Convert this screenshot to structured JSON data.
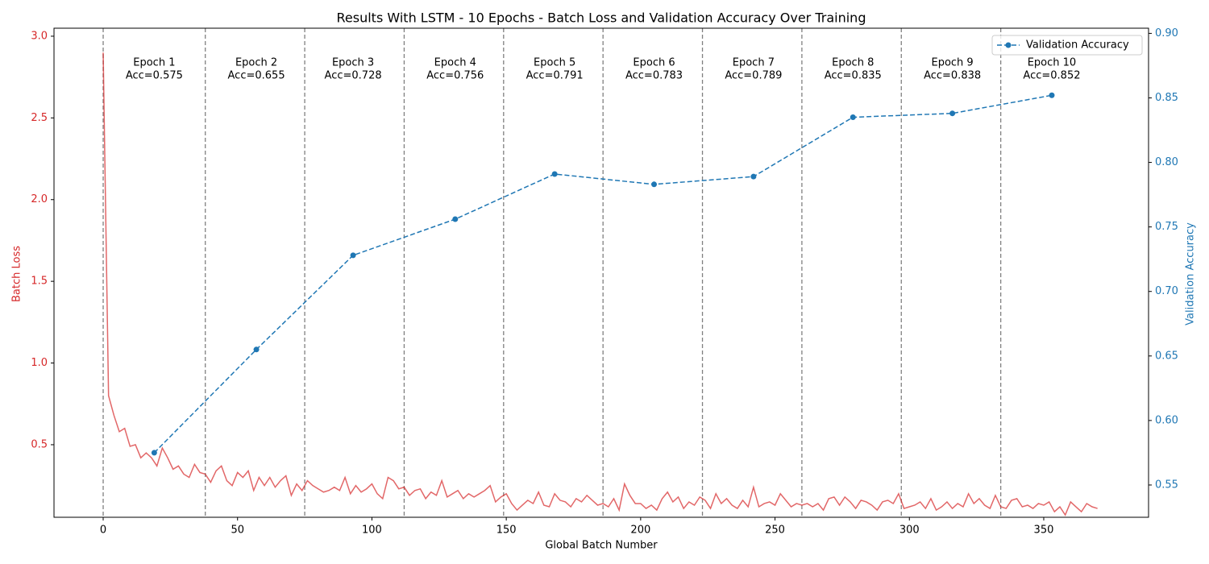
{
  "chart_data": {
    "type": "line",
    "title": "Results With LSTM - 10 Epochs - Batch Loss and Validation Accuracy Over Training",
    "xlabel": "Global Batch Number",
    "ylabel": "Batch Loss",
    "y2label": "Validation Accuracy",
    "xlim": [
      -18.3,
      389
    ],
    "ylim": [
      0.056,
      3.049
    ],
    "y2lim": [
      0.525,
      0.904
    ],
    "xticks": [
      0,
      50,
      100,
      150,
      200,
      250,
      300,
      350
    ],
    "yticks": [
      0.5,
      {
        "value": 1,
        "label": "1.0"
      },
      1.5,
      {
        "value": 2,
        "label": "2.0"
      },
      2.5,
      {
        "value": 3,
        "label": "3.0"
      }
    ],
    "y2ticks": [
      0.55,
      {
        "value": 0.6,
        "label": "0.60"
      },
      0.65,
      {
        "value": 0.7,
        "label": "0.70"
      },
      0.75,
      {
        "value": 0.8,
        "label": "0.80"
      },
      0.85,
      {
        "value": 0.9,
        "label": "0.90"
      }
    ],
    "legend": "upper right",
    "epoch_boundaries": [
      0,
      38,
      75,
      112,
      149,
      186,
      223,
      260,
      297,
      334
    ],
    "annotations": [
      "Epoch 1",
      "Epoch 2",
      "Epoch 3",
      "Epoch 4",
      "Epoch 5",
      "Epoch 6",
      "Epoch 7",
      "Epoch 8",
      "Epoch 9",
      "Epoch 10"
    ],
    "series": [
      {
        "color": "#d62728",
        "x": [
          0,
          2,
          4,
          6,
          8,
          10,
          12,
          14,
          16,
          18,
          20,
          22,
          24,
          26,
          28,
          30,
          32,
          34,
          36,
          38,
          40,
          42,
          44,
          46,
          48,
          50,
          52,
          54,
          56,
          58,
          60,
          62,
          64,
          66,
          68,
          70,
          72,
          74,
          76,
          78,
          80,
          82,
          84,
          86,
          88,
          90,
          92,
          94,
          96,
          98,
          100,
          102,
          104,
          106,
          108,
          110,
          112,
          114,
          116,
          118,
          120,
          122,
          124,
          126,
          128,
          130,
          132,
          134,
          136,
          138,
          140,
          142,
          144,
          146,
          148,
          150,
          152,
          154,
          156,
          158,
          160,
          162,
          164,
          166,
          168,
          170,
          172,
          174,
          176,
          178,
          180,
          182,
          184,
          186,
          188,
          190,
          192,
          194,
          196,
          198,
          200,
          202,
          204,
          206,
          208,
          210,
          212,
          214,
          216,
          218,
          220,
          222,
          224,
          226,
          228,
          230,
          232,
          234,
          236,
          238,
          240,
          242,
          244,
          246,
          248,
          250,
          252,
          254,
          256,
          258,
          260,
          262,
          264,
          266,
          268,
          270,
          272,
          274,
          276,
          278,
          280,
          282,
          284,
          286,
          288,
          290,
          292,
          294,
          296,
          298,
          300,
          302,
          304,
          306,
          308,
          310,
          312,
          314,
          316,
          318,
          320,
          322,
          324,
          326,
          328,
          330,
          332,
          334,
          336,
          338,
          340,
          342,
          344,
          346,
          348,
          350,
          352,
          354,
          356,
          358,
          360,
          362,
          364,
          366,
          368,
          370
        ],
        "values": [
          2.9,
          0.8,
          0.68,
          0.58,
          0.6,
          0.49,
          0.5,
          0.42,
          0.45,
          0.42,
          0.37,
          0.48,
          0.42,
          0.35,
          0.37,
          0.32,
          0.3,
          0.38,
          0.33,
          0.32,
          0.27,
          0.34,
          0.37,
          0.28,
          0.25,
          0.33,
          0.3,
          0.34,
          0.22,
          0.3,
          0.25,
          0.3,
          0.24,
          0.28,
          0.31,
          0.19,
          0.26,
          0.22,
          0.28,
          0.25,
          0.23,
          0.21,
          0.22,
          0.24,
          0.22,
          0.3,
          0.2,
          0.25,
          0.21,
          0.23,
          0.26,
          0.2,
          0.17,
          0.3,
          0.28,
          0.23,
          0.24,
          0.19,
          0.22,
          0.23,
          0.17,
          0.21,
          0.19,
          0.28,
          0.18,
          0.2,
          0.22,
          0.17,
          0.2,
          0.18,
          0.2,
          0.22,
          0.25,
          0.15,
          0.18,
          0.2,
          0.14,
          0.1,
          0.13,
          0.16,
          0.14,
          0.21,
          0.13,
          0.12,
          0.2,
          0.16,
          0.15,
          0.12,
          0.17,
          0.15,
          0.19,
          0.16,
          0.13,
          0.14,
          0.12,
          0.17,
          0.1,
          0.26,
          0.19,
          0.14,
          0.14,
          0.11,
          0.13,
          0.1,
          0.17,
          0.21,
          0.15,
          0.18,
          0.11,
          0.15,
          0.13,
          0.18,
          0.16,
          0.11,
          0.2,
          0.14,
          0.17,
          0.13,
          0.11,
          0.16,
          0.12,
          0.24,
          0.12,
          0.14,
          0.15,
          0.13,
          0.2,
          0.16,
          0.12,
          0.14,
          0.13,
          0.14,
          0.12,
          0.14,
          0.1,
          0.17,
          0.18,
          0.13,
          0.18,
          0.15,
          0.11,
          0.16,
          0.15,
          0.13,
          0.1,
          0.15,
          0.16,
          0.14,
          0.2,
          0.11,
          0.12,
          0.13,
          0.15,
          0.11,
          0.17,
          0.1,
          0.12,
          0.15,
          0.11,
          0.14,
          0.12,
          0.2,
          0.14,
          0.17,
          0.13,
          0.11,
          0.19,
          0.12,
          0.11,
          0.16,
          0.17,
          0.12,
          0.13,
          0.11,
          0.14,
          0.13,
          0.15,
          0.09,
          0.12,
          0.07,
          0.15,
          0.12,
          0.09,
          0.14,
          0.12,
          0.11
        ]
      },
      {
        "name": "Validation Accuracy",
        "color": "#1f77b4",
        "axis": "y2",
        "x": [
          19,
          57,
          93,
          131,
          168,
          205,
          242,
          279,
          316,
          353
        ],
        "values": [
          0.575,
          0.655,
          0.728,
          0.756,
          0.791,
          0.783,
          0.789,
          0.835,
          0.838,
          0.852
        ],
        "value_labels": [
          "Acc=0.575",
          "Acc=0.655",
          "Acc=0.728",
          "Acc=0.756",
          "Acc=0.791",
          "Acc=0.783",
          "Acc=0.789",
          "Acc=0.835",
          "Acc=0.838",
          "Acc=0.852"
        ]
      }
    ]
  }
}
